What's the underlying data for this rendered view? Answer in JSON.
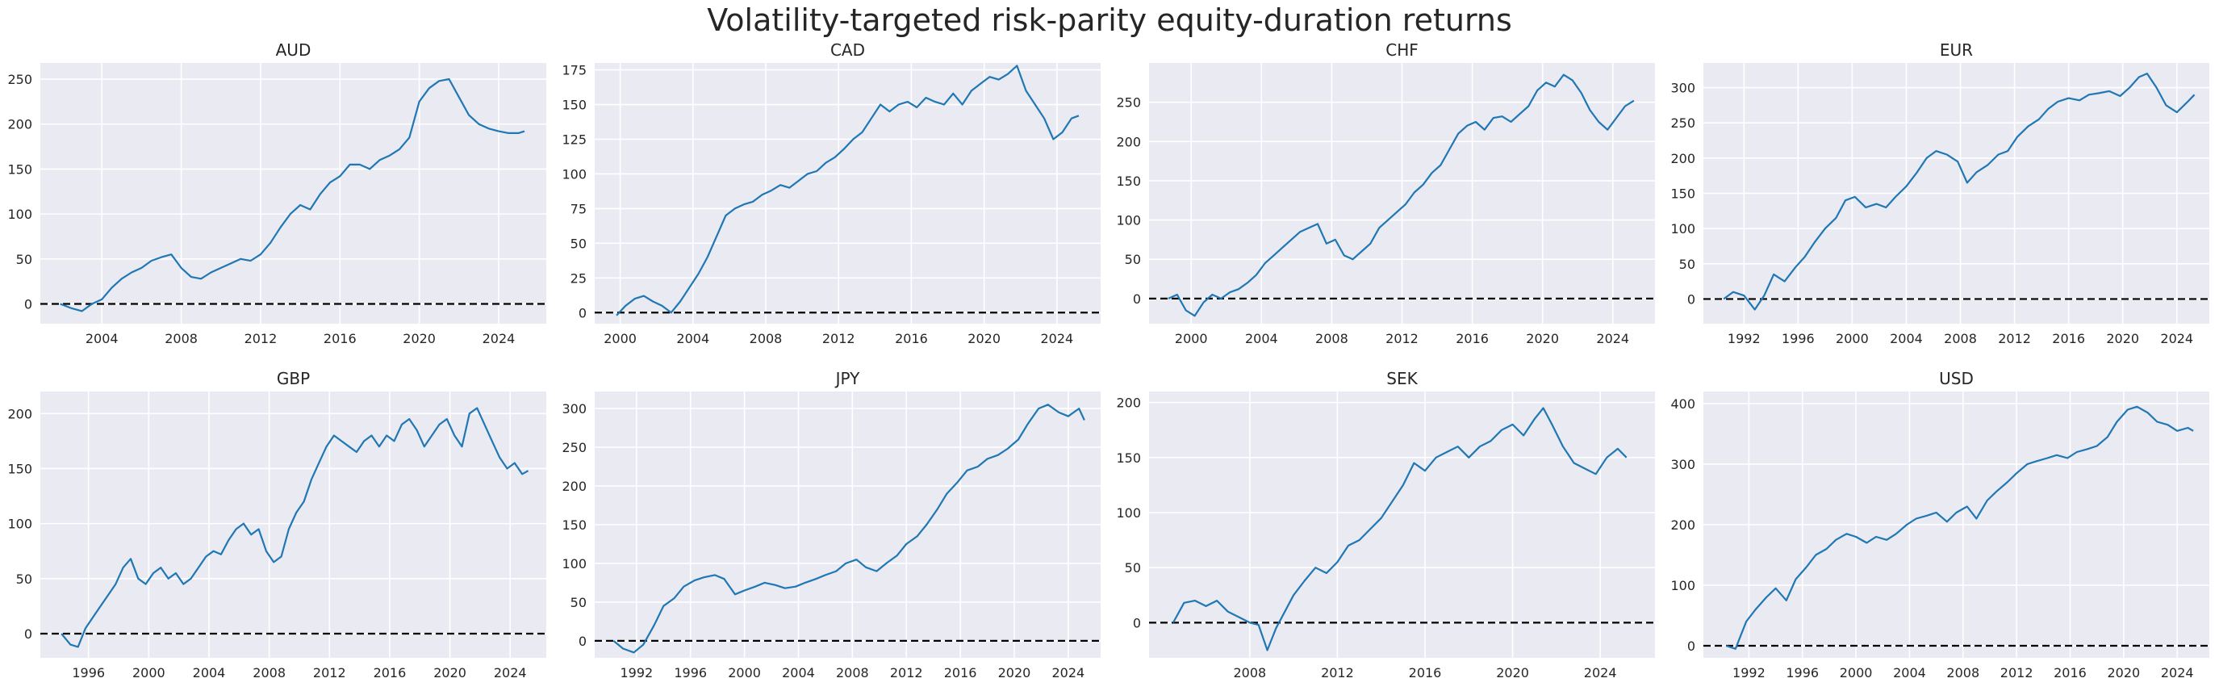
{
  "figure": {
    "title": "Volatility-targeted risk-parity equity-duration returns",
    "colors": {
      "background": "#eaeaf2",
      "grid": "#ffffff",
      "line": "#1f77b4",
      "zero_line": "#000000",
      "text": "#262626"
    }
  },
  "chart_data": [
    {
      "type": "line",
      "title": "AUD",
      "grid": true,
      "zero_line": 0,
      "xlim": [
        2000.9,
        2026.4
      ],
      "ylim": [
        -22,
        268
      ],
      "xticks": [
        2004,
        2008,
        2012,
        2016,
        2020,
        2024
      ],
      "yticks": [
        0,
        50,
        100,
        150,
        200,
        250
      ],
      "series": [
        {
          "x": [
            2001.9,
            2002.5,
            2003.0,
            2003.5,
            2004.0,
            2004.5,
            2005.0,
            2005.5,
            2006.0,
            2006.5,
            2007.0,
            2007.5,
            2008.0,
            2008.5,
            2009.0,
            2009.5,
            2010.0,
            2010.5,
            2011.0,
            2011.5,
            2012.0,
            2012.5,
            2013.0,
            2013.5,
            2014.0,
            2014.5,
            2015.0,
            2015.5,
            2016.0,
            2016.5,
            2017.0,
            2017.5,
            2018.0,
            2018.5,
            2019.0,
            2019.5,
            2020.0,
            2020.5,
            2021.0,
            2021.5,
            2022.0,
            2022.5,
            2023.0,
            2023.5,
            2024.0,
            2024.5,
            2025.0,
            2025.3
          ],
          "y": [
            0,
            -5,
            -8,
            0,
            5,
            18,
            28,
            35,
            40,
            48,
            52,
            55,
            40,
            30,
            28,
            35,
            40,
            45,
            50,
            48,
            55,
            68,
            85,
            100,
            110,
            105,
            122,
            135,
            142,
            155,
            155,
            150,
            160,
            165,
            172,
            185,
            225,
            240,
            248,
            250,
            230,
            210,
            200,
            195,
            192,
            190,
            190,
            192
          ]
        }
      ]
    },
    {
      "type": "line",
      "title": "CAD",
      "grid": true,
      "zero_line": 0,
      "xlim": [
        1998.6,
        2026.4
      ],
      "ylim": [
        -8,
        180
      ],
      "xticks": [
        2000,
        2004,
        2008,
        2012,
        2016,
        2020,
        2024
      ],
      "yticks": [
        0,
        25,
        50,
        75,
        100,
        125,
        150,
        175
      ],
      "series": [
        {
          "x": [
            1999.8,
            2000.3,
            2000.8,
            2001.3,
            2001.8,
            2002.3,
            2002.8,
            2003.3,
            2003.8,
            2004.3,
            2004.8,
            2005.3,
            2005.8,
            2006.3,
            2006.8,
            2007.3,
            2007.8,
            2008.3,
            2008.8,
            2009.3,
            2009.8,
            2010.3,
            2010.8,
            2011.3,
            2011.8,
            2012.3,
            2012.8,
            2013.3,
            2013.8,
            2014.3,
            2014.8,
            2015.3,
            2015.8,
            2016.3,
            2016.8,
            2017.3,
            2017.8,
            2018.3,
            2018.8,
            2019.3,
            2019.8,
            2020.3,
            2020.8,
            2021.3,
            2021.8,
            2022.3,
            2022.8,
            2023.3,
            2023.8,
            2024.3,
            2024.8,
            2025.2
          ],
          "y": [
            -2,
            5,
            10,
            12,
            8,
            5,
            0,
            8,
            18,
            28,
            40,
            55,
            70,
            75,
            78,
            80,
            85,
            88,
            92,
            90,
            95,
            100,
            102,
            108,
            112,
            118,
            125,
            130,
            140,
            150,
            145,
            150,
            152,
            148,
            155,
            152,
            150,
            158,
            150,
            160,
            165,
            170,
            168,
            172,
            178,
            160,
            150,
            140,
            125,
            130,
            140,
            142
          ]
        }
      ]
    },
    {
      "type": "line",
      "title": "CHF",
      "grid": true,
      "zero_line": 0,
      "xlim": [
        1997.6,
        2026.4
      ],
      "ylim": [
        -32,
        300
      ],
      "xticks": [
        2000,
        2004,
        2008,
        2012,
        2016,
        2020,
        2024
      ],
      "yticks": [
        0,
        50,
        100,
        150,
        200,
        250
      ],
      "series": [
        {
          "x": [
            1998.7,
            1999.2,
            1999.7,
            2000.2,
            2000.7,
            2001.2,
            2001.7,
            2002.2,
            2002.7,
            2003.2,
            2003.7,
            2004.2,
            2004.7,
            2005.2,
            2005.7,
            2006.2,
            2006.7,
            2007.2,
            2007.7,
            2008.2,
            2008.7,
            2009.2,
            2009.7,
            2010.2,
            2010.7,
            2011.2,
            2011.7,
            2012.2,
            2012.7,
            2013.2,
            2013.7,
            2014.2,
            2014.7,
            2015.2,
            2015.7,
            2016.2,
            2016.7,
            2017.2,
            2017.7,
            2018.2,
            2018.7,
            2019.2,
            2019.7,
            2020.2,
            2020.7,
            2021.2,
            2021.7,
            2022.2,
            2022.7,
            2023.2,
            2023.7,
            2024.2,
            2024.7,
            2025.2
          ],
          "y": [
            0,
            5,
            -15,
            -22,
            -5,
            5,
            0,
            8,
            12,
            20,
            30,
            45,
            55,
            65,
            75,
            85,
            90,
            95,
            70,
            75,
            55,
            50,
            60,
            70,
            90,
            100,
            110,
            120,
            135,
            145,
            160,
            170,
            190,
            210,
            220,
            225,
            215,
            230,
            232,
            225,
            235,
            245,
            265,
            275,
            270,
            285,
            278,
            262,
            240,
            225,
            215,
            230,
            245,
            252
          ]
        }
      ]
    },
    {
      "type": "line",
      "title": "EUR",
      "grid": true,
      "zero_line": 0,
      "xlim": [
        1989.0,
        2026.4
      ],
      "ylim": [
        -35,
        335
      ],
      "xticks": [
        1992,
        1996,
        2000,
        2004,
        2008,
        2012,
        2016,
        2020,
        2024
      ],
      "yticks": [
        0,
        50,
        100,
        150,
        200,
        250,
        300
      ],
      "series": [
        {
          "x": [
            1990.5,
            1991.2,
            1992.0,
            1992.8,
            1993.5,
            1994.2,
            1995.0,
            1995.8,
            1996.5,
            1997.2,
            1998.0,
            1998.8,
            1999.5,
            2000.2,
            2001.0,
            2001.8,
            2002.5,
            2003.2,
            2004.0,
            2004.8,
            2005.5,
            2006.2,
            2007.0,
            2007.8,
            2008.5,
            2009.2,
            2010.0,
            2010.8,
            2011.5,
            2012.2,
            2013.0,
            2013.8,
            2014.5,
            2015.2,
            2016.0,
            2016.8,
            2017.5,
            2018.2,
            2019.0,
            2019.8,
            2020.5,
            2021.2,
            2021.8,
            2022.5,
            2023.2,
            2024.0,
            2024.8,
            2025.3
          ],
          "y": [
            0,
            10,
            5,
            -15,
            5,
            35,
            25,
            45,
            60,
            80,
            100,
            115,
            140,
            145,
            130,
            135,
            130,
            145,
            160,
            180,
            200,
            210,
            205,
            195,
            165,
            180,
            190,
            205,
            210,
            230,
            245,
            255,
            270,
            280,
            285,
            282,
            290,
            292,
            295,
            288,
            300,
            315,
            320,
            300,
            275,
            265,
            280,
            290
          ]
        }
      ]
    },
    {
      "type": "line",
      "title": "GBP",
      "grid": true,
      "zero_line": 0,
      "xlim": [
        1992.8,
        2026.4
      ],
      "ylim": [
        -22,
        220
      ],
      "xticks": [
        1996,
        2000,
        2004,
        2008,
        2012,
        2016,
        2020,
        2024
      ],
      "yticks": [
        0,
        50,
        100,
        150,
        200
      ],
      "series": [
        {
          "x": [
            1994.2,
            1994.8,
            1995.3,
            1995.8,
            1996.3,
            1996.8,
            1997.3,
            1997.8,
            1998.3,
            1998.8,
            1999.3,
            1999.8,
            2000.3,
            2000.8,
            2001.3,
            2001.8,
            2002.3,
            2002.8,
            2003.3,
            2003.8,
            2004.3,
            2004.8,
            2005.3,
            2005.8,
            2006.3,
            2006.8,
            2007.3,
            2007.8,
            2008.3,
            2008.8,
            2009.3,
            2009.8,
            2010.3,
            2010.8,
            2011.3,
            2011.8,
            2012.3,
            2012.8,
            2013.3,
            2013.8,
            2014.3,
            2014.8,
            2015.3,
            2015.8,
            2016.3,
            2016.8,
            2017.3,
            2017.8,
            2018.3,
            2018.8,
            2019.3,
            2019.8,
            2020.3,
            2020.8,
            2021.3,
            2021.8,
            2022.3,
            2022.8,
            2023.3,
            2023.8,
            2024.3,
            2024.8,
            2025.2
          ],
          "y": [
            0,
            -10,
            -12,
            5,
            15,
            25,
            35,
            45,
            60,
            68,
            50,
            45,
            55,
            60,
            50,
            55,
            45,
            50,
            60,
            70,
            75,
            72,
            85,
            95,
            100,
            90,
            95,
            75,
            65,
            70,
            95,
            110,
            120,
            140,
            155,
            170,
            180,
            175,
            170,
            165,
            175,
            180,
            170,
            180,
            175,
            190,
            195,
            185,
            170,
            180,
            190,
            195,
            180,
            170,
            200,
            205,
            190,
            175,
            160,
            150,
            155,
            145,
            148
          ]
        }
      ]
    },
    {
      "type": "line",
      "title": "JPY",
      "grid": true,
      "zero_line": 0,
      "xlim": [
        1988.9,
        2026.4
      ],
      "ylim": [
        -22,
        322
      ],
      "xticks": [
        1992,
        1996,
        2000,
        2004,
        2008,
        2012,
        2016,
        2020,
        2024
      ],
      "yticks": [
        0,
        50,
        100,
        150,
        200,
        250,
        300
      ],
      "series": [
        {
          "x": [
            1990.3,
            1991.0,
            1991.8,
            1992.5,
            1993.3,
            1994.0,
            1994.8,
            1995.5,
            1996.3,
            1997.0,
            1997.8,
            1998.5,
            1999.3,
            2000.0,
            2000.8,
            2001.5,
            2002.3,
            2003.0,
            2003.8,
            2004.5,
            2005.3,
            2006.0,
            2006.8,
            2007.5,
            2008.3,
            2009.0,
            2009.8,
            2010.5,
            2011.3,
            2012.0,
            2012.8,
            2013.5,
            2014.3,
            2015.0,
            2015.8,
            2016.5,
            2017.3,
            2018.0,
            2018.8,
            2019.5,
            2020.3,
            2021.0,
            2021.8,
            2022.5,
            2023.3,
            2024.0,
            2024.8,
            2025.2
          ],
          "y": [
            0,
            -10,
            -15,
            -5,
            20,
            45,
            55,
            70,
            78,
            82,
            85,
            80,
            60,
            65,
            70,
            75,
            72,
            68,
            70,
            75,
            80,
            85,
            90,
            100,
            105,
            95,
            90,
            100,
            110,
            125,
            135,
            150,
            170,
            190,
            205,
            220,
            225,
            235,
            240,
            248,
            260,
            280,
            300,
            305,
            295,
            290,
            300,
            285
          ]
        }
      ]
    },
    {
      "type": "line",
      "title": "SEK",
      "grid": true,
      "zero_line": 0,
      "xlim": [
        2003.4,
        2026.5
      ],
      "ylim": [
        -32,
        210
      ],
      "xticks": [
        2008,
        2012,
        2016,
        2020,
        2024
      ],
      "yticks": [
        0,
        50,
        100,
        150,
        200
      ],
      "series": [
        {
          "x": [
            2004.5,
            2005.0,
            2005.5,
            2006.0,
            2006.5,
            2007.0,
            2007.5,
            2008.0,
            2008.4,
            2008.8,
            2009.2,
            2009.6,
            2010.0,
            2010.5,
            2011.0,
            2011.5,
            2012.0,
            2012.5,
            2013.0,
            2013.5,
            2014.0,
            2014.5,
            2015.0,
            2015.5,
            2016.0,
            2016.5,
            2017.0,
            2017.5,
            2018.0,
            2018.5,
            2019.0,
            2019.5,
            2020.0,
            2020.5,
            2021.0,
            2021.4,
            2021.8,
            2022.3,
            2022.8,
            2023.3,
            2023.8,
            2024.3,
            2024.8,
            2025.2
          ],
          "y": [
            0,
            18,
            20,
            15,
            20,
            10,
            5,
            0,
            -2,
            -25,
            -5,
            10,
            25,
            38,
            50,
            45,
            55,
            70,
            75,
            85,
            95,
            110,
            125,
            145,
            138,
            150,
            155,
            160,
            150,
            160,
            165,
            175,
            180,
            170,
            185,
            195,
            180,
            160,
            145,
            140,
            135,
            150,
            158,
            150
          ]
        }
      ]
    },
    {
      "type": "line",
      "title": "USD",
      "grid": true,
      "zero_line": 0,
      "xlim": [
        1988.6,
        2026.4
      ],
      "ylim": [
        -20,
        420
      ],
      "xticks": [
        1992,
        1996,
        2000,
        2004,
        2008,
        2012,
        2016,
        2020,
        2024
      ],
      "yticks": [
        0,
        100,
        200,
        300,
        400
      ],
      "series": [
        {
          "x": [
            1990.3,
            1991.0,
            1991.8,
            1992.5,
            1993.3,
            1994.0,
            1994.8,
            1995.5,
            1996.3,
            1997.0,
            1997.8,
            1998.5,
            1999.3,
            2000.0,
            2000.8,
            2001.5,
            2002.3,
            2003.0,
            2003.8,
            2004.5,
            2005.3,
            2006.0,
            2006.8,
            2007.5,
            2008.3,
            2009.0,
            2009.8,
            2010.5,
            2011.3,
            2012.0,
            2012.8,
            2013.5,
            2014.3,
            2015.0,
            2015.8,
            2016.5,
            2017.3,
            2018.0,
            2018.8,
            2019.5,
            2020.3,
            2021.0,
            2021.8,
            2022.5,
            2023.3,
            2024.0,
            2024.8,
            2025.2
          ],
          "y": [
            0,
            -5,
            40,
            60,
            80,
            95,
            75,
            110,
            130,
            150,
            160,
            175,
            185,
            180,
            170,
            180,
            175,
            185,
            200,
            210,
            215,
            220,
            205,
            220,
            230,
            210,
            240,
            255,
            270,
            285,
            300,
            305,
            310,
            315,
            310,
            320,
            325,
            330,
            345,
            370,
            390,
            395,
            385,
            370,
            365,
            355,
            360,
            355
          ]
        }
      ]
    }
  ]
}
